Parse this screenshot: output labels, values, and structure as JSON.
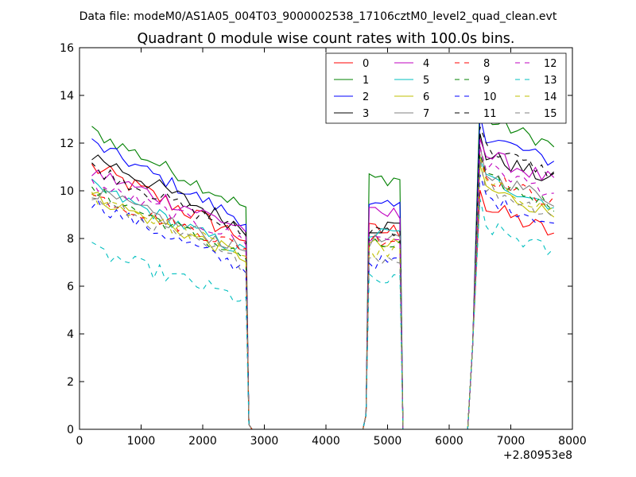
{
  "suptitle": "Data file: modeM0/AS1A05_004T03_9000002538_17106cztM0_level2_quad_clean.evt",
  "chart_data": {
    "type": "line",
    "title": "Quadrant 0 module wise count rates with 100.0s bins.",
    "xlabel": "",
    "ylabel": "",
    "x_offset_label": "+2.80953e8",
    "xlim": [
      0,
      8000
    ],
    "ylim": [
      0,
      16
    ],
    "xticks": [
      0,
      1000,
      2000,
      3000,
      4000,
      5000,
      6000,
      7000,
      8000
    ],
    "yticks": [
      0,
      2,
      4,
      6,
      8,
      10,
      12,
      14,
      16
    ],
    "grid": false,
    "legend_position": "top-right",
    "legend_columns": 4,
    "segments": [
      {
        "x_start": 200,
        "x_end": 2700
      },
      {
        "x_start": 4700,
        "x_end": 5200
      },
      {
        "x_start": 6500,
        "x_end": 7700
      }
    ],
    "gap_x": [
      2800,
      2900,
      3000,
      3100,
      3200,
      3300,
      3400,
      3500,
      3600,
      3700,
      3800,
      3900,
      4000,
      4100,
      4200,
      4300,
      4400,
      4500,
      4600,
      5300,
      5400,
      5500,
      5600,
      5700,
      5800,
      5900,
      6000,
      6100,
      6200,
      6300
    ],
    "edge_points": {
      "2750": 0.2,
      "4650": 0.6,
      "5250": 0.0,
      "6380": 3.5
    },
    "series": [
      {
        "name": "0",
        "color": "#ff0000",
        "dash": "solid",
        "level": [
          11.0,
          8.0,
          8.3,
          8.8
        ],
        "noise": 0.4
      },
      {
        "name": "1",
        "color": "#008000",
        "dash": "solid",
        "level": [
          12.5,
          9.3,
          10.5,
          12.5
        ],
        "noise": 0.3
      },
      {
        "name": "2",
        "color": "#0000ff",
        "dash": "solid",
        "level": [
          12.0,
          8.7,
          9.3,
          11.8
        ],
        "noise": 0.3
      },
      {
        "name": "3",
        "color": "#000000",
        "dash": "solid",
        "level": [
          11.5,
          8.4,
          8.5,
          11.0
        ],
        "noise": 0.35
      },
      {
        "name": "4",
        "color": "#bf00bf",
        "dash": "solid",
        "level": [
          10.8,
          8.4,
          9.0,
          11.0
        ],
        "noise": 0.35
      },
      {
        "name": "5",
        "color": "#00bfbf",
        "dash": "solid",
        "level": [
          10.2,
          7.4,
          8.2,
          10.0
        ],
        "noise": 0.3
      },
      {
        "name": "6",
        "color": "#bfbf00",
        "dash": "solid",
        "level": [
          9.8,
          7.2,
          7.7,
          9.6
        ],
        "noise": 0.3
      },
      {
        "name": "7",
        "color": "#808080",
        "dash": "solid",
        "level": [
          10.0,
          7.5,
          7.9,
          10.2
        ],
        "noise": 0.3
      },
      {
        "name": "8",
        "color": "#ff0000",
        "dash": "dashed",
        "level": [
          9.8,
          7.6,
          8.0,
          10.1
        ],
        "noise": 0.3
      },
      {
        "name": "9",
        "color": "#008000",
        "dash": "dashed",
        "level": [
          10.0,
          7.2,
          7.7,
          10.0
        ],
        "noise": 0.3
      },
      {
        "name": "10",
        "color": "#0000ff",
        "dash": "dashed",
        "level": [
          9.5,
          6.7,
          7.0,
          9.2
        ],
        "noise": 0.3
      },
      {
        "name": "11",
        "color": "#000000",
        "dash": "dashed",
        "level": [
          11.0,
          8.2,
          8.4,
          11.3
        ],
        "noise": 0.3
      },
      {
        "name": "12",
        "color": "#bf00bf",
        "dash": "dashed",
        "level": [
          10.3,
          7.9,
          8.0,
          10.5
        ],
        "noise": 0.3
      },
      {
        "name": "13",
        "color": "#00bfbf",
        "dash": "dashed",
        "level": [
          7.5,
          5.4,
          6.2,
          8.0
        ],
        "noise": 0.35
      },
      {
        "name": "14",
        "color": "#bfbf00",
        "dash": "dashed",
        "level": [
          9.8,
          7.3,
          7.4,
          9.8
        ],
        "noise": 0.3
      },
      {
        "name": "15",
        "color": "#808080",
        "dash": "dashed",
        "level": [
          9.7,
          6.9,
          7.2,
          9.6
        ],
        "noise": 0.3
      }
    ]
  }
}
